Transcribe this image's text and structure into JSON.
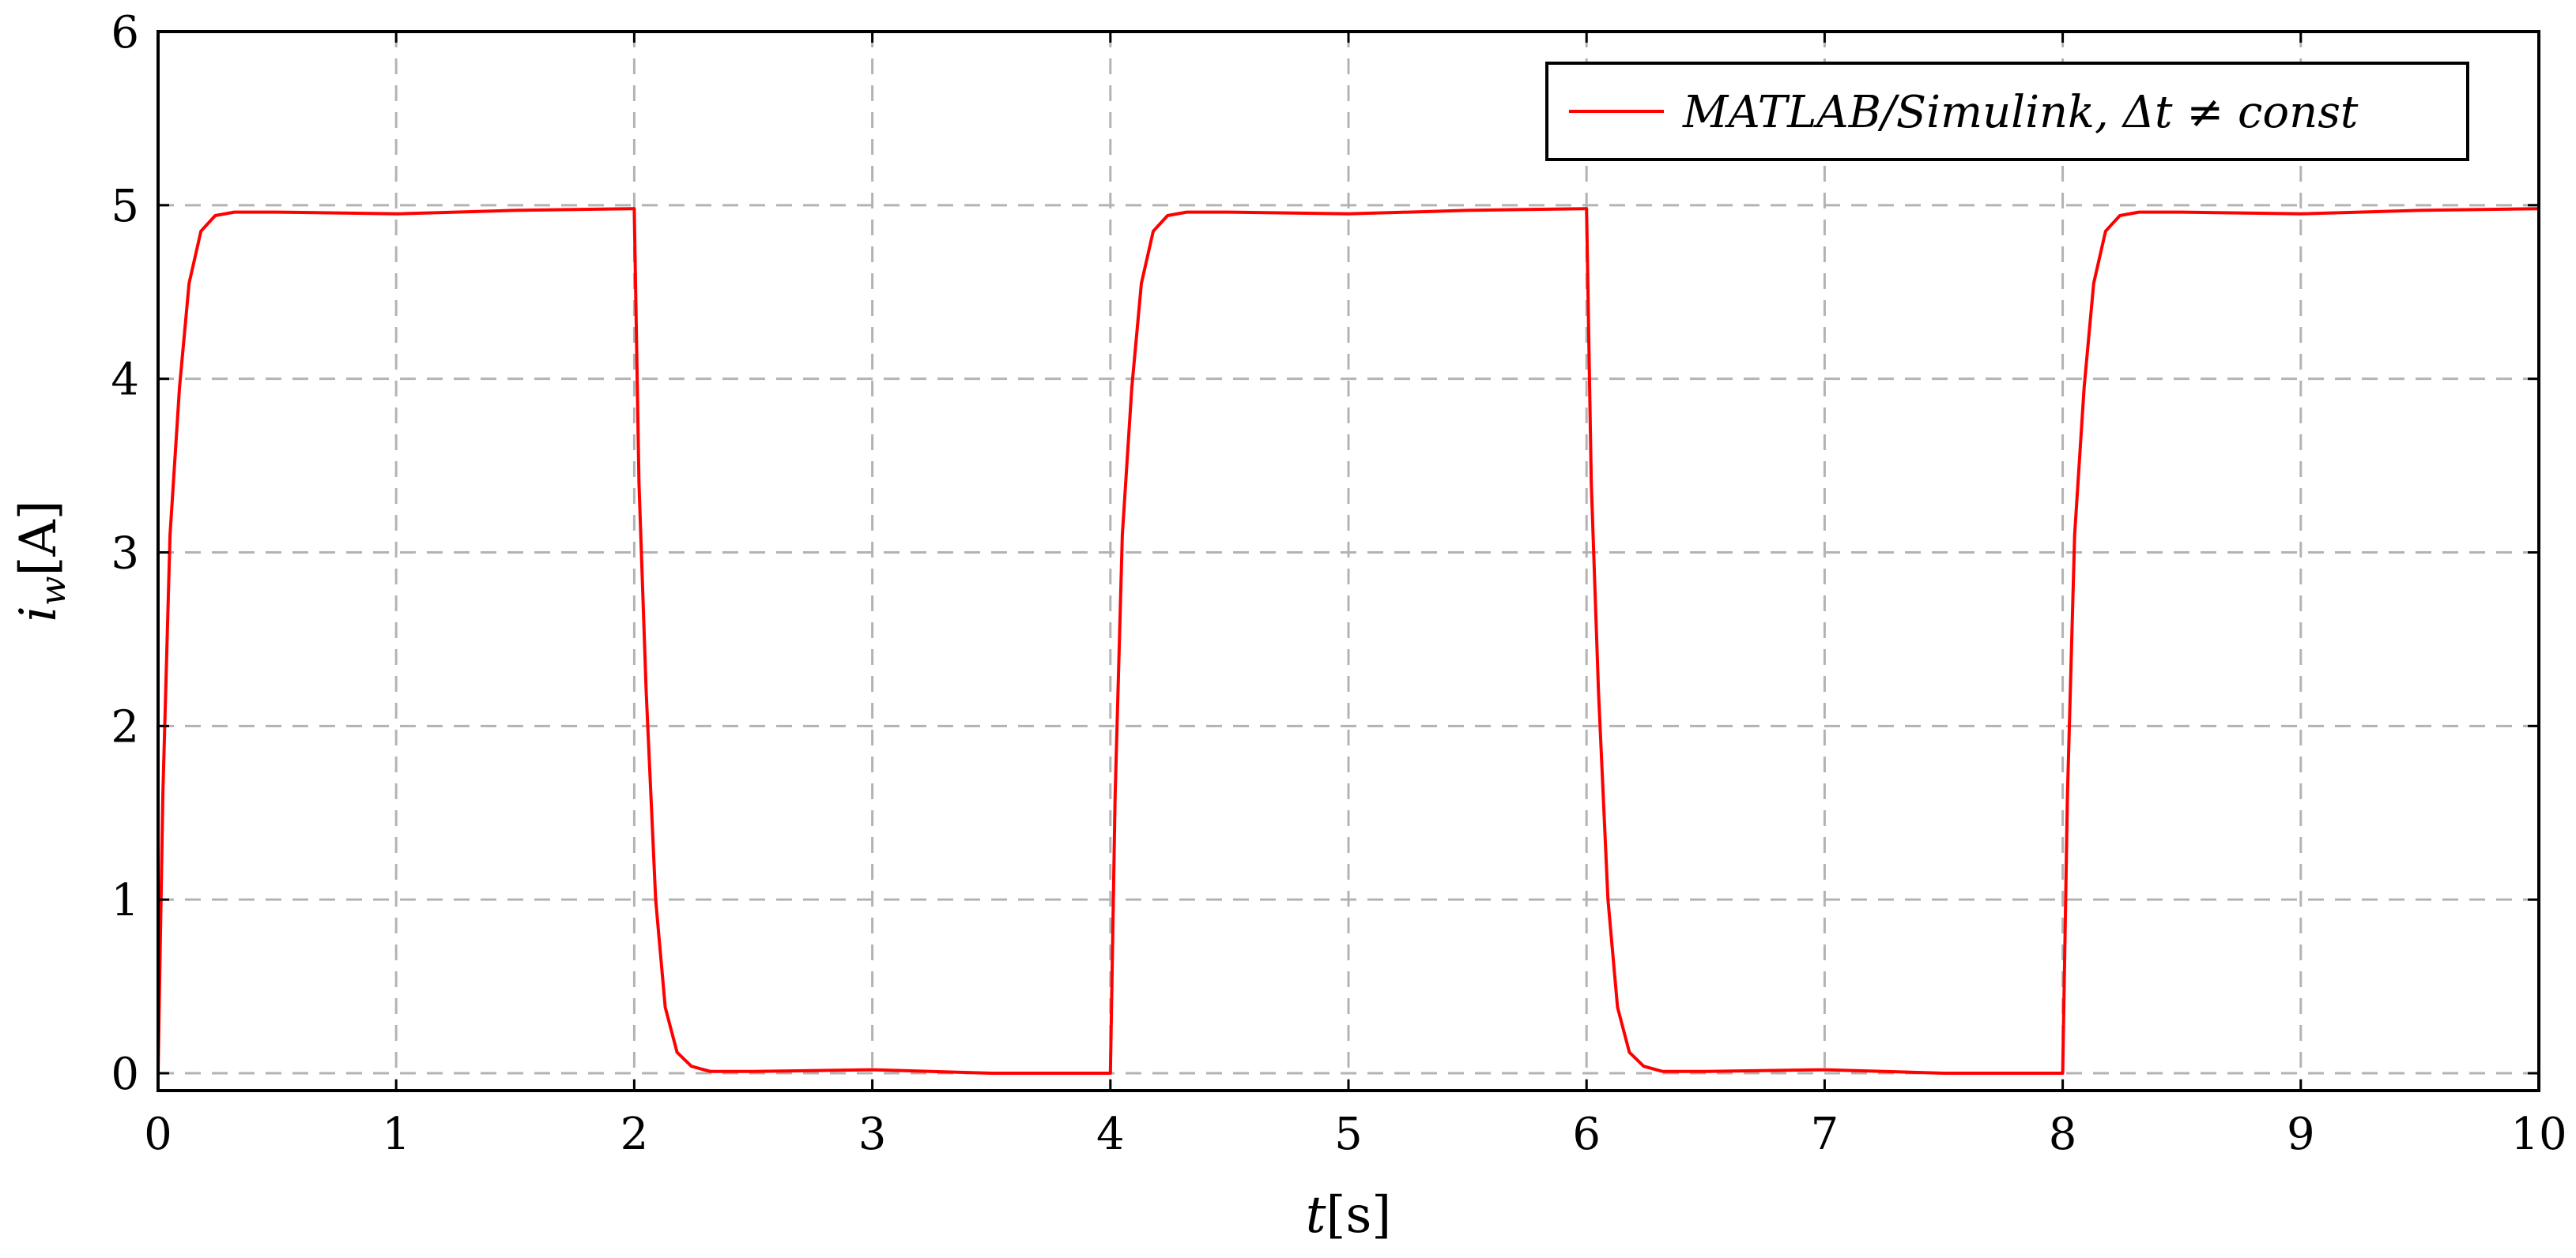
{
  "chart_data": {
    "type": "line",
    "xlabel": "t[s]",
    "ylabel": "i_w[A]",
    "xlim": [
      0,
      10
    ],
    "ylim": [
      -0.1,
      6
    ],
    "xticks": [
      0,
      1,
      2,
      3,
      4,
      5,
      6,
      7,
      8,
      9,
      10
    ],
    "yticks": [
      0,
      1,
      2,
      3,
      4,
      5,
      6
    ],
    "grid": true,
    "legend_position": "top-right",
    "series": [
      {
        "name": "MATLAB/Simulink, Δt ≠ const",
        "color": "#ff0000",
        "x": [
          0,
          0.02,
          0.05,
          0.09,
          0.13,
          0.18,
          0.24,
          0.32,
          0.5,
          1.0,
          1.5,
          1.99,
          2.0,
          2.02,
          2.05,
          2.09,
          2.13,
          2.18,
          2.24,
          2.32,
          2.5,
          3.0,
          3.5,
          3.99,
          4.0,
          4.02,
          4.05,
          4.09,
          4.13,
          4.18,
          4.24,
          4.32,
          4.5,
          5.0,
          5.5,
          5.99,
          6.0,
          6.02,
          6.05,
          6.09,
          6.13,
          6.18,
          6.24,
          6.32,
          6.5,
          7.0,
          7.5,
          7.99,
          8.0,
          8.02,
          8.05,
          8.09,
          8.13,
          8.18,
          8.24,
          8.32,
          8.5,
          9.0,
          9.5,
          10.0
        ],
        "y": [
          0,
          1.6,
          3.1,
          3.95,
          4.55,
          4.85,
          4.94,
          4.96,
          4.96,
          4.95,
          4.97,
          4.98,
          4.98,
          3.4,
          2.2,
          1.0,
          0.38,
          0.12,
          0.04,
          0.01,
          0.01,
          0.02,
          0.0,
          0.0,
          0.0,
          1.6,
          3.1,
          3.95,
          4.55,
          4.85,
          4.94,
          4.96,
          4.96,
          4.95,
          4.97,
          4.98,
          4.98,
          3.4,
          2.2,
          1.0,
          0.38,
          0.12,
          0.04,
          0.01,
          0.01,
          0.02,
          0.0,
          0.0,
          0.0,
          1.6,
          3.1,
          3.95,
          4.55,
          4.85,
          4.94,
          4.96,
          4.96,
          4.95,
          4.97,
          4.98
        ]
      }
    ]
  }
}
